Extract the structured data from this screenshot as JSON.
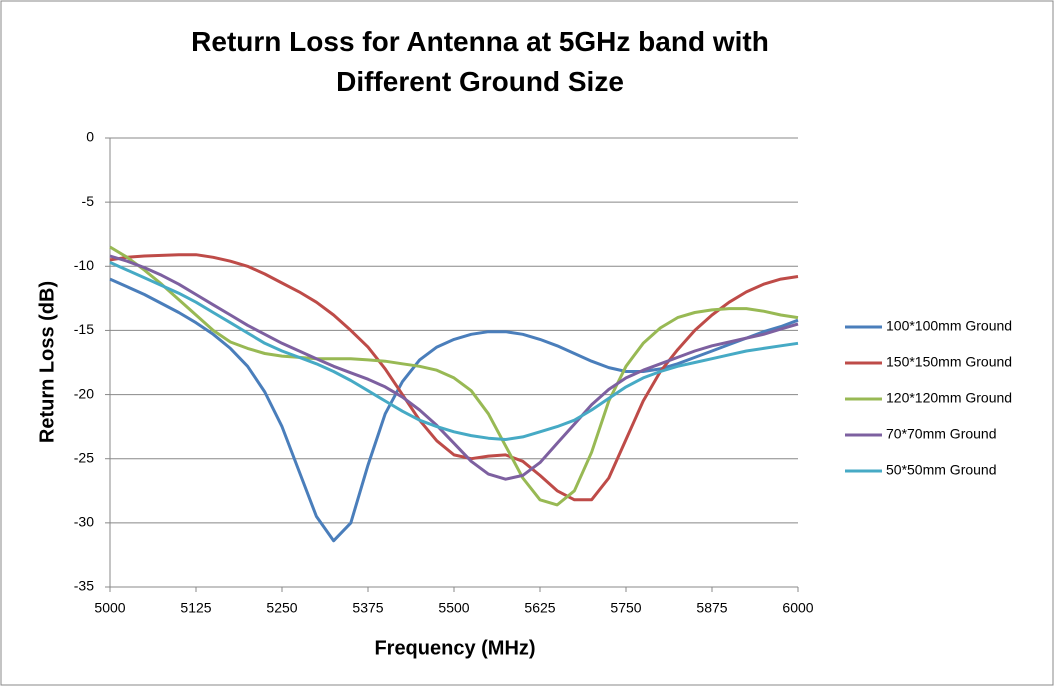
{
  "chart_data": {
    "type": "line",
    "title": "Return Loss for Antenna at 5GHz band with Different Ground Size",
    "xlabel": "Frequency  (MHz)",
    "ylabel": "Return Loss (dB)",
    "x": [
      5000,
      5025,
      5050,
      5075,
      5100,
      5125,
      5150,
      5175,
      5200,
      5225,
      5250,
      5275,
      5300,
      5325,
      5350,
      5375,
      5400,
      5425,
      5450,
      5475,
      5500,
      5525,
      5550,
      5575,
      5600,
      5625,
      5650,
      5675,
      5700,
      5725,
      5750,
      5775,
      5800,
      5825,
      5850,
      5875,
      5900,
      5925,
      5950,
      5975,
      6000
    ],
    "xlim": [
      5000,
      6000
    ],
    "xticks": [
      5000,
      5125,
      5250,
      5375,
      5500,
      5625,
      5750,
      5875,
      6000
    ],
    "ylim": [
      -35,
      0
    ],
    "yticks": [
      0,
      -5,
      -10,
      -15,
      -20,
      -25,
      -30,
      -35
    ],
    "grid": true,
    "legend": "right",
    "series": [
      {
        "name": "100*100mm Ground",
        "color": "#4a7ebb",
        "values": [
          -11,
          -11.6,
          -12.2,
          -12.9,
          -13.6,
          -14.4,
          -15.3,
          -16.4,
          -17.8,
          -19.8,
          -22.5,
          -26,
          -29.5,
          -31.4,
          -30,
          -25.5,
          -21.5,
          -19,
          -17.3,
          -16.3,
          -15.7,
          -15.3,
          -15.1,
          -15.1,
          -15.3,
          -15.7,
          -16.2,
          -16.8,
          -17.4,
          -17.9,
          -18.2,
          -18.2,
          -18,
          -17.6,
          -17.1,
          -16.6,
          -16.1,
          -15.6,
          -15.1,
          -14.7,
          -14.2
        ]
      },
      {
        "name": "150*150mm Ground",
        "color": "#be4b48",
        "values": [
          -9.5,
          -9.3,
          -9.2,
          -9.15,
          -9.1,
          -9.1,
          -9.3,
          -9.6,
          -10,
          -10.6,
          -11.3,
          -12,
          -12.8,
          -13.8,
          -15,
          -16.3,
          -18,
          -20,
          -22,
          -23.6,
          -24.7,
          -25,
          -24.8,
          -24.7,
          -25.2,
          -26.3,
          -27.5,
          -28.2,
          -28.2,
          -26.5,
          -23.5,
          -20.5,
          -18.2,
          -16.5,
          -15,
          -13.8,
          -12.8,
          -12,
          -11.4,
          -11,
          -10.8
        ]
      },
      {
        "name": "120*120mm Ground",
        "color": "#98b954",
        "values": [
          -8.5,
          -9.3,
          -10.3,
          -11.4,
          -12.6,
          -13.8,
          -15,
          -15.9,
          -16.4,
          -16.8,
          -17,
          -17.1,
          -17.2,
          -17.2,
          -17.2,
          -17.3,
          -17.4,
          -17.6,
          -17.8,
          -18.1,
          -18.7,
          -19.7,
          -21.5,
          -24,
          -26.5,
          -28.2,
          -28.6,
          -27.5,
          -24.5,
          -20.5,
          -17.8,
          -16,
          -14.8,
          -14,
          -13.6,
          -13.4,
          -13.3,
          -13.3,
          -13.5,
          -13.8,
          -14
        ]
      },
      {
        "name": "70*70mm Ground",
        "color": "#7d60a0",
        "values": [
          -9.2,
          -9.6,
          -10.1,
          -10.7,
          -11.4,
          -12.2,
          -13,
          -13.8,
          -14.6,
          -15.3,
          -16,
          -16.6,
          -17.2,
          -17.8,
          -18.3,
          -18.8,
          -19.4,
          -20.2,
          -21.2,
          -22.4,
          -23.8,
          -25.2,
          -26.2,
          -26.6,
          -26.3,
          -25.3,
          -23.8,
          -22.3,
          -20.8,
          -19.6,
          -18.7,
          -18.1,
          -17.6,
          -17.1,
          -16.6,
          -16.2,
          -15.9,
          -15.6,
          -15.3,
          -14.9,
          -14.5
        ]
      },
      {
        "name": "50*50mm Ground",
        "color": "#46aac5",
        "values": [
          -9.7,
          -10.3,
          -10.9,
          -11.5,
          -12.1,
          -12.8,
          -13.6,
          -14.4,
          -15.2,
          -16,
          -16.6,
          -17.1,
          -17.6,
          -18.2,
          -18.9,
          -19.7,
          -20.5,
          -21.3,
          -22,
          -22.5,
          -22.9,
          -23.2,
          -23.4,
          -23.5,
          -23.3,
          -22.9,
          -22.5,
          -22,
          -21.2,
          -20.3,
          -19.4,
          -18.7,
          -18.2,
          -17.8,
          -17.5,
          -17.2,
          -16.9,
          -16.6,
          -16.4,
          -16.2,
          -16
        ]
      }
    ]
  }
}
